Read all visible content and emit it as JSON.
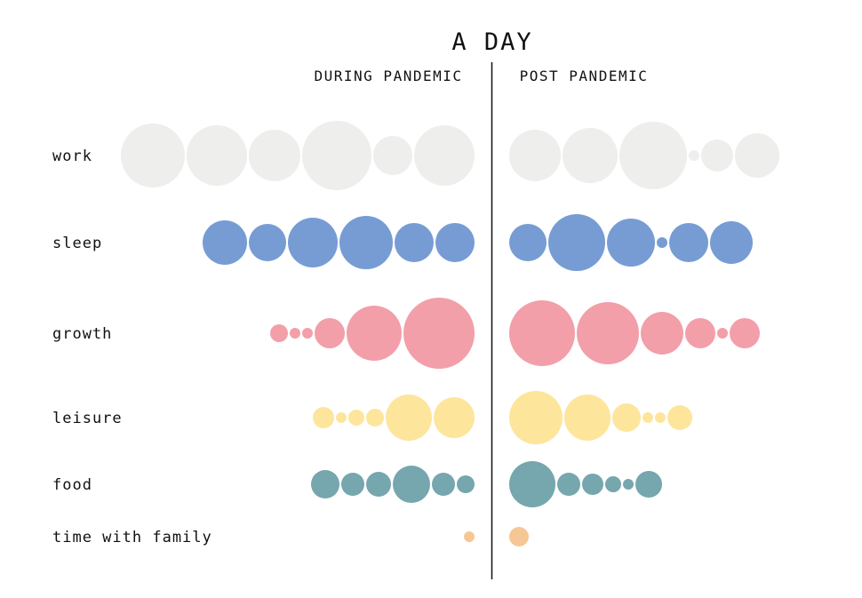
{
  "chart_data": {
    "type": "bubble-rows",
    "title": "A DAY",
    "sections": [
      "DURING PANDEMIC",
      "POST PANDEMIC"
    ],
    "rows": [
      {
        "label": "work",
        "color": "#eeeeed",
        "during": [
          36,
          34,
          29,
          39,
          22,
          34
        ],
        "post": [
          29,
          31,
          38,
          6,
          18,
          25
        ]
      },
      {
        "label": "sleep",
        "color": "#779cd4",
        "during": [
          25,
          21,
          28,
          30,
          22,
          22
        ],
        "post": [
          21,
          32,
          27,
          6,
          22,
          24
        ]
      },
      {
        "label": "growth",
        "color": "#f29fa9",
        "during": [
          10,
          6,
          6,
          17,
          31,
          40
        ],
        "post": [
          37,
          35,
          24,
          17,
          6,
          17
        ]
      },
      {
        "label": "leisure",
        "color": "#fde59c",
        "during": [
          12,
          6,
          9,
          10,
          26,
          23
        ],
        "post": [
          30,
          26,
          16,
          6,
          6,
          14
        ]
      },
      {
        "label": "food",
        "color": "#76a6ae",
        "during": [
          16,
          13,
          14,
          21,
          13,
          10
        ],
        "post": [
          26,
          13,
          12,
          9,
          6,
          15
        ]
      },
      {
        "label": "time with family",
        "color": "#f6c794",
        "during": [
          6
        ],
        "post": [
          11
        ]
      }
    ]
  }
}
